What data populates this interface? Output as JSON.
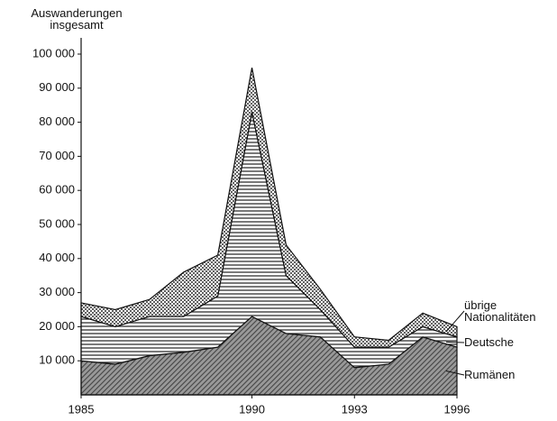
{
  "chart_data": {
    "type": "stacked_area",
    "y_axis_label": "Auswanderungen insgesamt",
    "x": [
      1985,
      1986,
      1987,
      1988,
      1989,
      1990,
      1991,
      1992,
      1993,
      1994,
      1995,
      1996
    ],
    "xlim": [
      1985,
      1996
    ],
    "xticks": [
      1985,
      1990,
      1993,
      1996
    ],
    "ylim": [
      0,
      100000
    ],
    "yticks": [
      {
        "value": 10000,
        "label": "10 000"
      },
      {
        "value": 20000,
        "label": "20 000"
      },
      {
        "value": 30000,
        "label": "30 000"
      },
      {
        "value": 40000,
        "label": "40 000"
      },
      {
        "value": 50000,
        "label": "50 000"
      },
      {
        "value": 60000,
        "label": "60 000"
      },
      {
        "value": 70000,
        "label": "70 000"
      },
      {
        "value": 80000,
        "label": "80 000"
      },
      {
        "value": 90000,
        "label": "90 000"
      },
      {
        "value": 100000,
        "label": "100 000"
      }
    ],
    "series": [
      {
        "name": "Rumänen",
        "color": "#444444",
        "pattern": "hatch",
        "values": [
          10000,
          9000,
          11500,
          12500,
          14000,
          23000,
          18000,
          17000,
          8000,
          9000,
          17000,
          14000
        ]
      },
      {
        "name": "Deutsche",
        "color": "#222222",
        "pattern": "lines",
        "values": [
          13000,
          11000,
          11500,
          10500,
          15000,
          60000,
          17000,
          8000,
          6000,
          5000,
          3000,
          3000
        ]
      },
      {
        "name": "übrige Nationalitäten",
        "color": "#555555",
        "pattern": "dots",
        "values": [
          4000,
          5000,
          5000,
          13000,
          12000,
          13000,
          9000,
          6000,
          3000,
          2000,
          4000,
          3000
        ]
      }
    ]
  }
}
